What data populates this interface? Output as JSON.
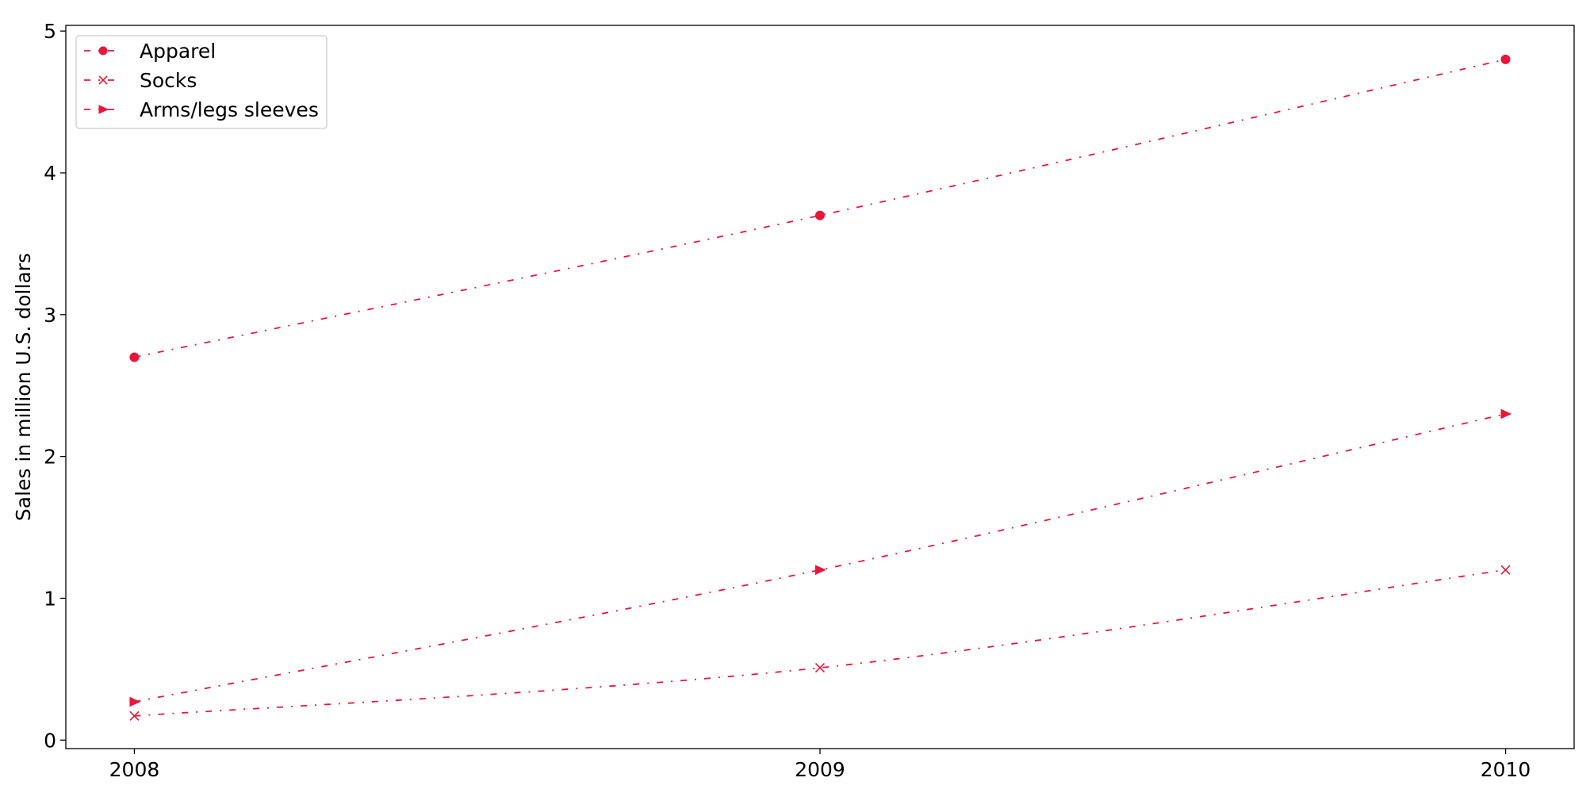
{
  "chart_data": {
    "type": "line",
    "title": "",
    "xlabel": "",
    "ylabel": "Sales in million U.S. dollars",
    "x": [
      "2008",
      "2009",
      "2010"
    ],
    "xlim": [
      2007.9,
      2010.1
    ],
    "ylim": [
      -0.06,
      5.04
    ],
    "yticks": [
      0,
      1,
      2,
      3,
      4,
      5
    ],
    "grid": false,
    "legend_position": "top-left",
    "line_style": "dash-dot",
    "series": [
      {
        "name": "Apparel",
        "values": [
          2.7,
          3.7,
          4.8
        ],
        "marker": "circle",
        "color": "#e8173a"
      },
      {
        "name": "Socks",
        "values": [
          0.17,
          0.51,
          1.2
        ],
        "marker": "x",
        "color": "#e8173a"
      },
      {
        "name": "Arms/legs sleeves",
        "values": [
          0.27,
          1.2,
          2.3
        ],
        "marker": "triangle-right",
        "color": "#e8173a"
      }
    ]
  }
}
